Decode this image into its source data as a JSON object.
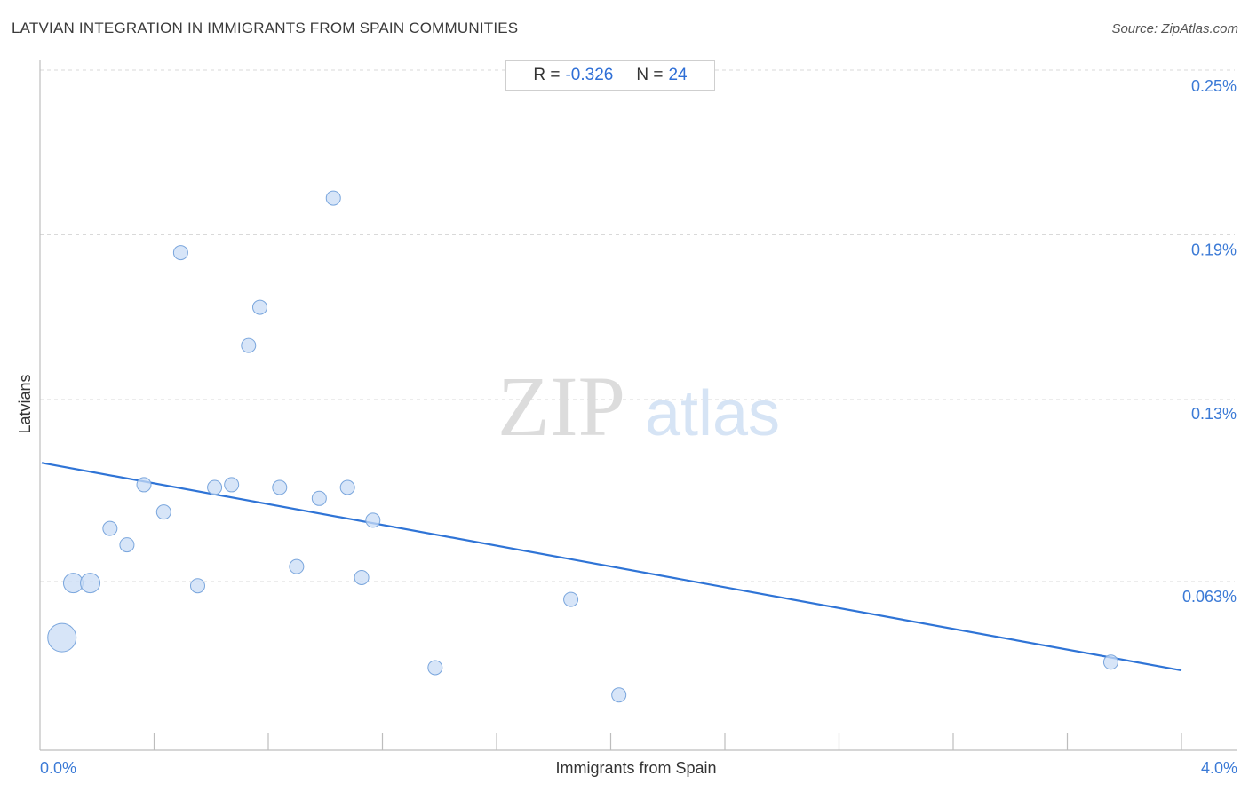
{
  "header": {
    "title": "LATVIAN INTEGRATION IN IMMIGRANTS FROM SPAIN COMMUNITIES",
    "source": "Source: ZipAtlas.com"
  },
  "stats": {
    "r_label": "R =",
    "r_value": "-0.326",
    "n_label": "N =",
    "n_value": "24"
  },
  "watermark": {
    "zip": "ZIP",
    "atlas": "atlas"
  },
  "colors": {
    "point_fill": "#c9dcf5",
    "point_stroke": "#7aa6dd",
    "trend": "#2f74d6",
    "tick_label": "#3b7ad6"
  },
  "chart_data": {
    "type": "scatter",
    "title": "LATVIAN INTEGRATION IN IMMIGRANTS FROM SPAIN COMMUNITIES",
    "xlabel": "Immigrants from Spain",
    "ylabel": "Latvians",
    "xlim": [
      0.0,
      4.0
    ],
    "ylim": [
      0.0,
      0.25
    ],
    "x_tick_labels": [
      "0.0%",
      "4.0%"
    ],
    "y_ticks": [
      {
        "value": 0.25,
        "label": "0.25%"
      },
      {
        "value": 0.19,
        "label": "0.19%"
      },
      {
        "value": 0.13,
        "label": "0.13%"
      },
      {
        "value": 0.063,
        "label": "0.063%"
      }
    ],
    "grid": true,
    "trend": {
      "x": [
        0.0,
        4.0
      ],
      "y": [
        0.112,
        0.036
      ]
    },
    "points": [
      {
        "x": 0.04,
        "y": 0.048,
        "size": "large"
      },
      {
        "x": 0.08,
        "y": 0.068,
        "size": "medium"
      },
      {
        "x": 0.14,
        "y": 0.068,
        "size": "medium"
      },
      {
        "x": 0.21,
        "y": 0.088,
        "size": "small"
      },
      {
        "x": 0.27,
        "y": 0.082,
        "size": "small"
      },
      {
        "x": 0.33,
        "y": 0.104,
        "size": "small"
      },
      {
        "x": 0.4,
        "y": 0.094,
        "size": "small"
      },
      {
        "x": 0.46,
        "y": 0.189,
        "size": "small"
      },
      {
        "x": 0.52,
        "y": 0.067,
        "size": "small"
      },
      {
        "x": 0.58,
        "y": 0.103,
        "size": "small"
      },
      {
        "x": 0.64,
        "y": 0.104,
        "size": "small"
      },
      {
        "x": 0.7,
        "y": 0.155,
        "size": "small"
      },
      {
        "x": 0.74,
        "y": 0.169,
        "size": "small"
      },
      {
        "x": 0.81,
        "y": 0.103,
        "size": "small"
      },
      {
        "x": 0.87,
        "y": 0.074,
        "size": "small"
      },
      {
        "x": 0.95,
        "y": 0.099,
        "size": "small"
      },
      {
        "x": 1.0,
        "y": 0.209,
        "size": "small"
      },
      {
        "x": 1.05,
        "y": 0.103,
        "size": "small"
      },
      {
        "x": 1.1,
        "y": 0.07,
        "size": "small"
      },
      {
        "x": 1.14,
        "y": 0.091,
        "size": "small"
      },
      {
        "x": 1.36,
        "y": 0.037,
        "size": "small"
      },
      {
        "x": 1.84,
        "y": 0.062,
        "size": "small"
      },
      {
        "x": 2.01,
        "y": 0.027,
        "size": "small"
      },
      {
        "x": 3.75,
        "y": 0.039,
        "size": "small"
      }
    ]
  }
}
